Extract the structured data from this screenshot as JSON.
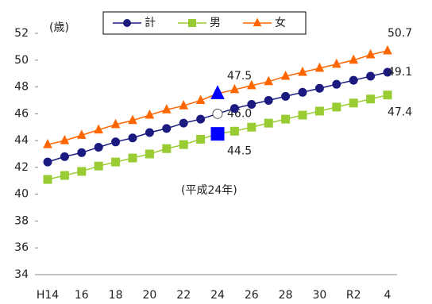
{
  "chart_data": {
    "type": "line",
    "y_label": "(歳)",
    "annotation": "(平成24年)",
    "categories": [
      "H14",
      null,
      "16",
      null,
      "18",
      null,
      "20",
      null,
      "22",
      null,
      "24",
      null,
      "26",
      null,
      "28",
      null,
      "30",
      null,
      "R2",
      null,
      "4"
    ],
    "series": [
      {
        "name": "計",
        "color": "#1a1a80",
        "marker": "circle",
        "values": [
          42.4,
          42.8,
          43.1,
          43.5,
          43.9,
          44.2,
          44.6,
          44.9,
          45.3,
          45.6,
          46.0,
          46.4,
          46.7,
          47.0,
          47.3,
          47.6,
          47.9,
          48.2,
          48.5,
          48.8,
          49.1
        ],
        "value_labels": [
          null,
          null,
          null,
          null,
          null,
          null,
          null,
          null,
          null,
          null,
          "46.0",
          null,
          null,
          null,
          null,
          null,
          null,
          null,
          null,
          null,
          "49.1"
        ]
      },
      {
        "name": "男",
        "color": "#99cc33",
        "marker": "square",
        "values": [
          41.1,
          41.4,
          41.7,
          42.1,
          42.4,
          42.7,
          43.0,
          43.4,
          43.7,
          44.1,
          44.5,
          44.7,
          45.0,
          45.3,
          45.6,
          45.9,
          46.2,
          46.5,
          46.8,
          47.1,
          47.4
        ],
        "value_labels": [
          null,
          null,
          null,
          null,
          null,
          null,
          null,
          null,
          null,
          null,
          "44.5",
          null,
          null,
          null,
          null,
          null,
          null,
          null,
          null,
          null,
          "47.4"
        ]
      },
      {
        "name": "女",
        "color": "#ff6600",
        "marker": "triangle",
        "values": [
          43.7,
          44.0,
          44.4,
          44.8,
          45.2,
          45.5,
          45.9,
          46.3,
          46.6,
          47.0,
          47.5,
          47.8,
          48.1,
          48.4,
          48.8,
          49.1,
          49.4,
          49.7,
          50.0,
          50.4,
          50.7
        ],
        "value_labels": [
          null,
          null,
          null,
          null,
          null,
          null,
          null,
          null,
          null,
          null,
          "47.5",
          null,
          null,
          null,
          null,
          null,
          null,
          null,
          null,
          null,
          "50.7"
        ]
      }
    ],
    "ylim": [
      34,
      52
    ],
    "yticks": [
      34,
      36,
      38,
      40,
      42,
      44,
      46,
      48,
      50,
      52
    ],
    "highlight_color": "#0000ff"
  }
}
